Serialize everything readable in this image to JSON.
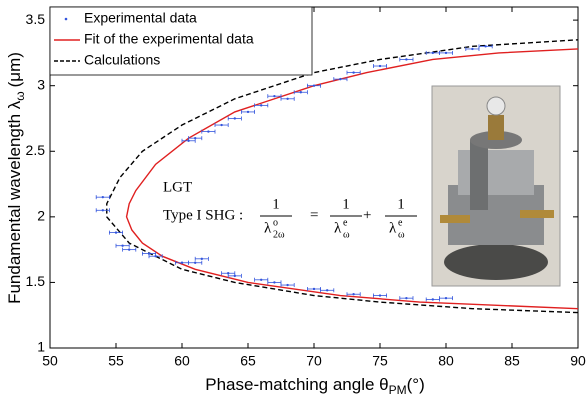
{
  "chart_data": {
    "type": "scatter-fit",
    "xlabel": {
      "text": "Phase-matching angle θ",
      "sub": "PM",
      "suffix": "(°)"
    },
    "ylabel": {
      "text": "Fundamental wavelength  λ",
      "sub": "ω",
      "suffix": "(μm)"
    },
    "xlim": [
      50,
      90
    ],
    "ylim": [
      1,
      3.6
    ],
    "xticks": [
      50,
      55,
      60,
      65,
      70,
      75,
      80,
      85,
      90
    ],
    "yticks": [
      1,
      1.5,
      2,
      2.5,
      3,
      3.5
    ],
    "legend": "upper left",
    "annotation": {
      "lines": [
        "LGT",
        "Type I SHG :"
      ],
      "terms": [
        {
          "num": "1",
          "den": "λ",
          "sup": "o",
          "sub": "2ω"
        },
        {
          "num": "1",
          "den": "λ",
          "sup": "e",
          "sub": "ω"
        },
        {
          "num": "1",
          "den": "λ",
          "sup": "e",
          "sub": "ω"
        }
      ],
      "ops": [
        "=",
        "+"
      ]
    },
    "series": [
      {
        "name": "Experimental data",
        "kind": "points",
        "color": "#3355dd",
        "x": [
          55,
          55.5,
          56,
          57.5,
          58,
          60,
          61,
          61.5,
          63.5,
          64,
          66,
          67,
          68,
          70,
          71,
          73,
          75,
          77,
          79,
          80,
          54,
          54,
          60.5,
          61,
          62,
          63,
          64,
          65,
          66,
          67,
          68,
          69,
          70,
          72,
          73,
          75,
          77,
          79,
          80,
          82,
          83
        ],
        "values": [
          1.88,
          1.78,
          1.75,
          1.72,
          1.7,
          1.65,
          1.65,
          1.68,
          1.57,
          1.55,
          1.52,
          1.5,
          1.48,
          1.45,
          1.44,
          1.41,
          1.4,
          1.38,
          1.37,
          1.38,
          2.15,
          2.05,
          2.58,
          2.6,
          2.65,
          2.7,
          2.75,
          2.8,
          2.85,
          2.92,
          2.9,
          2.95,
          3.0,
          3.05,
          3.1,
          3.15,
          3.2,
          3.25,
          3.25,
          3.28,
          3.3
        ],
        "xerr": [
          0.5,
          0.5,
          0.5,
          0.5,
          0.5,
          0.5,
          0.5,
          0.5,
          0.5,
          0.5,
          0.5,
          0.5,
          0.5,
          0.5,
          0.5,
          0.5,
          0.5,
          0.5,
          0.5,
          0.5,
          0.5,
          0.5,
          0.5,
          0.5,
          0.5,
          0.5,
          0.5,
          0.5,
          0.5,
          0.5,
          0.5,
          0.5,
          0.5,
          0.5,
          0.5,
          0.5,
          0.5,
          0.5,
          0.5,
          0.5,
          0.5
        ]
      },
      {
        "name": "Fit of the experimental data",
        "kind": "solid",
        "color": "#e02020",
        "x": [
          90,
          78,
          72,
          65,
          61,
          58.5,
          57,
          56.2,
          55.8,
          56,
          56.5,
          58,
          60.5,
          64,
          70,
          74,
          79,
          84,
          90
        ],
        "values": [
          1.3,
          1.35,
          1.4,
          1.5,
          1.6,
          1.7,
          1.8,
          1.9,
          2.0,
          2.1,
          2.2,
          2.4,
          2.6,
          2.8,
          3.0,
          3.1,
          3.2,
          3.25,
          3.28
        ]
      },
      {
        "name": "Calculations",
        "kind": "dashed",
        "color": "#000000",
        "x": [
          90,
          82,
          75,
          70,
          64,
          60,
          56,
          54.3,
          54.3,
          55.3,
          57,
          60,
          64,
          70,
          75,
          82,
          90
        ],
        "values": [
          1.27,
          1.3,
          1.35,
          1.4,
          1.5,
          1.6,
          1.8,
          2.0,
          2.1,
          2.3,
          2.5,
          2.7,
          2.9,
          3.1,
          3.2,
          3.3,
          3.35
        ]
      }
    ]
  }
}
